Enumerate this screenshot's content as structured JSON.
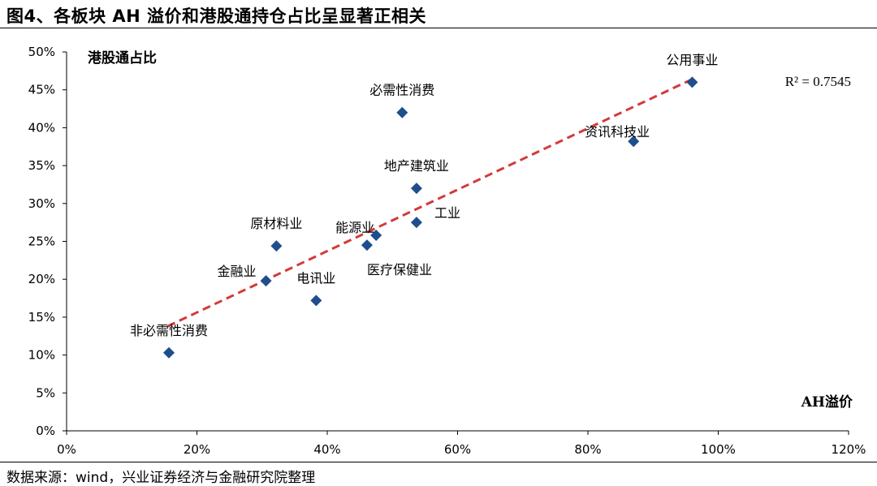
{
  "title": "图4、各板块 AH 溢价和港股通持仓占比呈显著正相关",
  "source": "数据来源：wind，兴业证券经济与金融研究院整理",
  "chart_data": {
    "type": "scatter",
    "ylabel": "港股通占比",
    "xlabel": "AH溢价",
    "xlim": [
      0,
      1.2
    ],
    "ylim": [
      0,
      0.5
    ],
    "x_ticks": [
      0,
      0.2,
      0.4,
      0.6,
      0.8,
      1.0,
      1.2
    ],
    "x_tick_labels": [
      "0%",
      "20%",
      "40%",
      "60%",
      "80%",
      "100%",
      "120%"
    ],
    "y_ticks": [
      0,
      0.05,
      0.1,
      0.15,
      0.2,
      0.25,
      0.3,
      0.35,
      0.4,
      0.45,
      0.5
    ],
    "y_tick_labels": [
      "0%",
      "5%",
      "10%",
      "15%",
      "20%",
      "25%",
      "30%",
      "35%",
      "40%",
      "45%",
      "50%"
    ],
    "points": [
      {
        "label": "公用事业",
        "x": 0.96,
        "y": 0.46
      },
      {
        "label": "必需性消费",
        "x": 0.515,
        "y": 0.42
      },
      {
        "label": "资讯科技业",
        "x": 0.87,
        "y": 0.382
      },
      {
        "label": "地产建筑业",
        "x": 0.537,
        "y": 0.32
      },
      {
        "label": "工业",
        "x": 0.537,
        "y": 0.275
      },
      {
        "label": "能源业",
        "x": 0.475,
        "y": 0.258
      },
      {
        "label": "医疗保健业",
        "x": 0.461,
        "y": 0.245
      },
      {
        "label": "原材料业",
        "x": 0.322,
        "y": 0.244
      },
      {
        "label": "金融业",
        "x": 0.306,
        "y": 0.198
      },
      {
        "label": "电讯业",
        "x": 0.383,
        "y": 0.172
      },
      {
        "label": "非必需性消费",
        "x": 0.157,
        "y": 0.103
      }
    ],
    "trendline": {
      "x": [
        0.155,
        0.96
      ],
      "y": [
        0.138,
        0.464
      ],
      "r2_label": "R² = 0.7545",
      "color": "#d43a3a",
      "style": "dashed"
    },
    "marker_color": "#1f4e8c",
    "grid": false,
    "legend": "none"
  }
}
